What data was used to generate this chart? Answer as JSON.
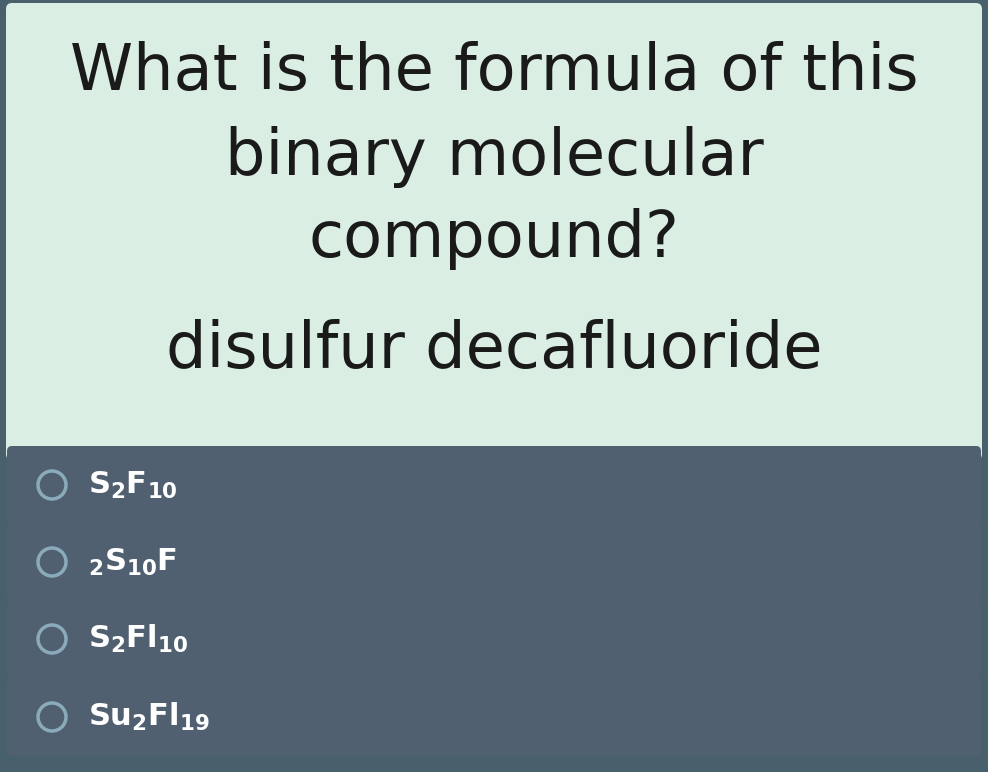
{
  "question_line1": "What is the formula of this",
  "question_line2": "binary molecular",
  "question_line3": "compound?",
  "question_line4": "disulfur decafluoride",
  "question_box_color": "#daeee4",
  "background_color": "#485f6c",
  "option_box_color": "#506070",
  "option_box_border_color": "#3a4e5a",
  "options": [
    {
      "latex": "$\\mathbf{S_{2}F_{10}}$",
      "circle_filled": false
    },
    {
      "latex": "$\\mathbf{_{2}S_{10}F}$",
      "circle_filled": false
    },
    {
      "latex": "$\\mathbf{S_{2}Fl_{10}}$",
      "circle_filled": false
    },
    {
      "latex": "$\\mathbf{Su_{2}Fl_{19}}$",
      "circle_filled": false
    }
  ],
  "option_text_color": "#ffffff",
  "circle_outline_color": "#8aabbb",
  "question_text_color": "#1a1a1a",
  "q_fontsize": 46,
  "opt_fontsize": 22
}
